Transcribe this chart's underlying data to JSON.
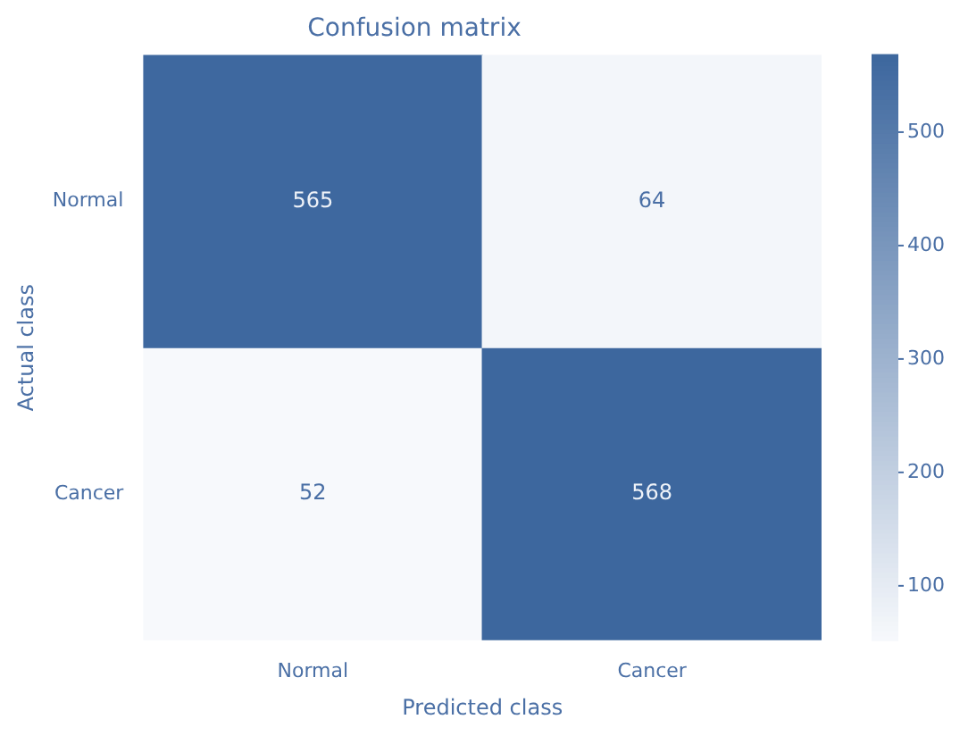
{
  "chart_data": {
    "type": "heatmap",
    "title": "Confusion matrix",
    "xlabel": "Predicted class",
    "ylabel": "Actual class",
    "categories": [
      "Normal",
      "Cancer"
    ],
    "y_categories": [
      "Normal",
      "Cancer"
    ],
    "cells": [
      [
        565,
        64
      ],
      [
        52,
        568
      ]
    ],
    "clim": [
      52,
      568
    ],
    "cticks": [
      100,
      200,
      300,
      400,
      500
    ],
    "data_labels": true
  }
}
